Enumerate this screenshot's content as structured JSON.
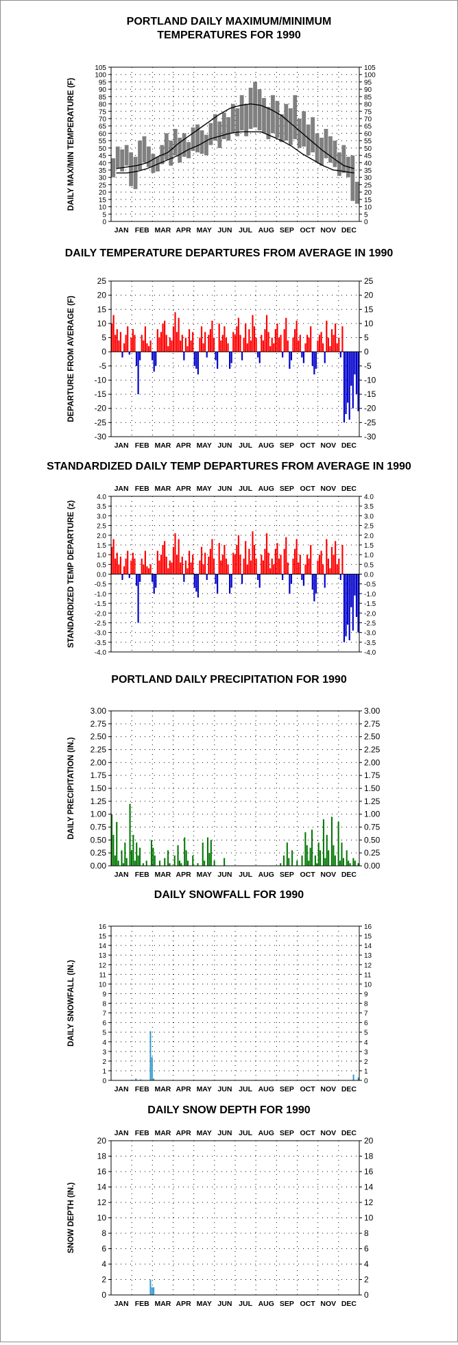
{
  "months": [
    "JAN",
    "FEB",
    "MAR",
    "APR",
    "MAY",
    "JUN",
    "JUL",
    "AUG",
    "SEP",
    "OCT",
    "NOV",
    "DEC"
  ],
  "colors": {
    "temp_band": "#808080",
    "normal_line": "#000000",
    "above": "#ff0000",
    "below": "#0000cc",
    "precip": "#007700",
    "snow": "#3399cc"
  },
  "chart_data": [
    {
      "id": "temps",
      "type": "area",
      "title": [
        "PORTLAND DAILY MAXIMUM/MINIMUM",
        "TEMPERATURES FOR 1990"
      ],
      "ylabel": "DAILY MAX/MIN TEMPERATURE (F)",
      "ylim": [
        0,
        105
      ],
      "ytick_step": 5,
      "ytick_decimals": 0,
      "grid": true,
      "x_axis": "month",
      "month_labels": "bottom",
      "normal_high": [
        36,
        37,
        38,
        40,
        44,
        47,
        53,
        58,
        63,
        68,
        73,
        77,
        79,
        80,
        79,
        76,
        72,
        66,
        60,
        54,
        48,
        43,
        38,
        36
      ],
      "normal_low": [
        33,
        33,
        34,
        36,
        39,
        42,
        45,
        49,
        52,
        56,
        58,
        60,
        61,
        61,
        61,
        58,
        55,
        51,
        46,
        42,
        38,
        35,
        34,
        33
      ],
      "series_high": [
        43,
        51,
        49,
        52,
        47,
        44,
        55,
        58,
        51,
        46,
        44,
        52,
        60,
        55,
        63,
        57,
        60,
        54,
        64,
        66,
        62,
        59,
        67,
        73,
        68,
        74,
        71,
        80,
        77,
        86,
        80,
        91,
        95,
        90,
        84,
        78,
        86,
        82,
        73,
        80,
        77,
        86,
        70,
        75,
        66,
        71,
        60,
        57,
        63,
        58,
        55,
        47,
        52,
        44,
        45,
        27
      ],
      "series_low": [
        30,
        36,
        34,
        38,
        24,
        22,
        35,
        40,
        37,
        33,
        34,
        39,
        42,
        38,
        45,
        40,
        44,
        43,
        48,
        47,
        46,
        45,
        52,
        55,
        50,
        56,
        55,
        60,
        58,
        62,
        58,
        63,
        64,
        62,
        60,
        56,
        60,
        57,
        54,
        55,
        52,
        56,
        50,
        51,
        45,
        47,
        40,
        38,
        43,
        40,
        37,
        31,
        33,
        30,
        14,
        12
      ]
    },
    {
      "id": "departures",
      "type": "bar",
      "title": [
        "DAILY TEMPERATURE DEPARTURES FROM AVERAGE IN 1990"
      ],
      "ylabel": "DEPARTURE FROM AVERAGE (F)",
      "ylim": [
        -30,
        25
      ],
      "ytick_step": 5,
      "ytick_decimals": 0,
      "grid": true,
      "x_axis": "month",
      "month_labels": "bottom",
      "values": [
        10,
        13,
        6,
        8,
        4,
        7,
        -2,
        3,
        6,
        9,
        -1,
        5,
        8,
        6,
        -5,
        -15,
        -3,
        6,
        4,
        9,
        3,
        2,
        4,
        -3,
        -7,
        -5,
        8,
        5,
        7,
        10,
        11,
        6,
        2,
        5,
        4,
        9,
        14,
        7,
        12,
        4,
        6,
        -3,
        5,
        2,
        8,
        4,
        7,
        -5,
        -6,
        -8,
        5,
        9,
        3,
        7,
        -2,
        6,
        8,
        11,
        5,
        -3,
        -6,
        10,
        4,
        6,
        9,
        5,
        3,
        -6,
        -4,
        7,
        6,
        9,
        12,
        6,
        -3,
        5,
        10,
        3,
        8,
        4,
        13,
        9,
        5,
        -2,
        -4,
        6,
        4,
        8,
        13,
        7,
        2,
        5,
        3,
        8,
        10,
        5,
        6,
        -2,
        8,
        12,
        4,
        -6,
        -3,
        5,
        8,
        11,
        4,
        6,
        -2,
        -4,
        3,
        6,
        5,
        9,
        -5,
        -8,
        -6,
        4,
        6,
        7,
        3,
        -4,
        11,
        5,
        2,
        8,
        6,
        10,
        3,
        5,
        -2,
        9,
        -25,
        -22,
        -18,
        -24,
        -12,
        -20,
        -8,
        -15,
        -21
      ]
    },
    {
      "id": "standardized",
      "type": "bar",
      "title": [
        "STANDARDIZED DAILY TEMP DEPARTURES FROM AVERAGE IN 1990"
      ],
      "ylabel": "STANDARDIZED TEMP DEPARTURE (z)",
      "ylim": [
        -4,
        4
      ],
      "ytick_step": 0.5,
      "ytick_decimals": 1,
      "grid": true,
      "x_axis": "month",
      "month_labels": "top",
      "values": [
        1.4,
        1.8,
        0.8,
        1.1,
        0.5,
        0.9,
        -0.3,
        0.4,
        0.8,
        1.2,
        -0.2,
        0.7,
        1.1,
        0.8,
        -0.6,
        -2.5,
        -0.4,
        0.8,
        0.5,
        1.2,
        0.4,
        0.3,
        0.5,
        -0.4,
        -1.0,
        -0.7,
        1.2,
        0.7,
        1.0,
        1.5,
        1.7,
        0.9,
        0.3,
        0.7,
        0.6,
        1.4,
        2.1,
        1.0,
        1.8,
        0.6,
        0.9,
        -0.4,
        0.7,
        0.3,
        1.2,
        0.6,
        1.0,
        -0.7,
        -0.9,
        -1.2,
        0.7,
        1.4,
        0.5,
        1.1,
        -0.3,
        0.9,
        1.3,
        1.8,
        0.8,
        -0.5,
        -1.0,
        1.6,
        0.7,
        1.0,
        1.5,
        0.8,
        0.5,
        -1.0,
        -0.7,
        1.1,
        1.0,
        1.5,
        2.0,
        1.0,
        -0.5,
        0.8,
        1.7,
        0.5,
        1.3,
        0.7,
        2.2,
        1.5,
        0.8,
        -0.3,
        -0.7,
        1.0,
        0.7,
        1.3,
        2.1,
        1.1,
        0.3,
        0.8,
        0.5,
        1.3,
        1.6,
        0.8,
        1.0,
        -0.3,
        1.3,
        1.9,
        0.6,
        -1.0,
        -0.5,
        0.8,
        1.3,
        1.8,
        0.6,
        1.0,
        -0.3,
        -0.6,
        0.5,
        1.0,
        0.8,
        1.5,
        -0.8,
        -1.4,
        -1.0,
        0.7,
        1.0,
        1.2,
        0.5,
        -0.7,
        1.8,
        0.8,
        0.3,
        1.4,
        1.0,
        1.7,
        0.5,
        0.8,
        -0.3,
        1.5,
        -3.5,
        -3.2,
        -2.6,
        -3.4,
        -1.7,
        -2.9,
        -1.1,
        -2.2,
        -3.0
      ]
    },
    {
      "id": "precip",
      "type": "bar",
      "title": [
        "PORTLAND DAILY PRECIPITATION FOR 1990"
      ],
      "ylabel": "DAILY PRECIPITATION (IN.)",
      "ylim": [
        0,
        3
      ],
      "ytick_step": 0.25,
      "ytick_decimals": 2,
      "grid": true,
      "x_axis": "month",
      "month_labels": "bottom",
      "values": [
        1.0,
        0.6,
        0.2,
        0.85,
        0.1,
        0,
        0.3,
        0.05,
        0.45,
        0.15,
        0,
        1.2,
        0.3,
        0.6,
        0.1,
        0.45,
        0.2,
        0.35,
        0,
        0.05,
        0,
        0.1,
        0,
        0,
        0.5,
        0.35,
        0.2,
        0,
        0,
        0.1,
        0,
        0,
        0.15,
        0,
        0.3,
        0.05,
        0,
        0,
        0.2,
        0,
        0.4,
        0.1,
        0.05,
        0,
        0.55,
        0.3,
        0.1,
        0,
        0,
        0.2,
        0,
        0,
        0.05,
        0,
        0,
        0.45,
        0.1,
        0,
        0.55,
        0.25,
        0.5,
        0,
        0.1,
        0,
        0,
        0,
        0,
        0,
        0.15,
        0,
        0,
        0,
        0,
        0,
        0,
        0,
        0,
        0,
        0,
        0,
        0,
        0,
        0,
        0,
        0,
        0,
        0,
        0,
        0,
        0,
        0,
        0,
        0,
        0,
        0,
        0,
        0,
        0,
        0,
        0,
        0,
        0,
        0.05,
        0,
        0.2,
        0,
        0.45,
        0.15,
        0,
        0.3,
        0,
        0,
        0.1,
        0,
        0,
        0.2,
        0,
        0.65,
        0.4,
        0.1,
        0.35,
        0.7,
        0,
        0.2,
        0.05,
        0.45,
        0.3,
        0,
        0.9,
        0.15,
        0.6,
        0.3,
        0,
        0.95,
        0.4,
        0.2,
        0,
        0.85,
        0.1,
        0.45,
        0.15,
        0,
        0.3,
        0.1,
        0.05,
        0,
        0.15,
        0.1,
        0,
        0.05
      ]
    },
    {
      "id": "snowfall",
      "type": "bar",
      "title": [
        "DAILY SNOWFALL FOR 1990"
      ],
      "ylabel": "DAILY SNOWFALL (IN.)",
      "ylim": [
        0,
        16
      ],
      "ytick_step": 1,
      "ytick_decimals": 0,
      "grid": true,
      "x_axis": "month",
      "month_labels": "bottom",
      "values": [
        0,
        0,
        0,
        0,
        0,
        0,
        0,
        0,
        0,
        0,
        0,
        0,
        0,
        0,
        0,
        0.2,
        0,
        0,
        0.1,
        0,
        0,
        0,
        0,
        0,
        5.1,
        2.4,
        0.2,
        0,
        0,
        0,
        0,
        0,
        0,
        0,
        0,
        0,
        0,
        0,
        0,
        0,
        0,
        0,
        0,
        0,
        0,
        0,
        0,
        0,
        0,
        0,
        0,
        0,
        0,
        0,
        0,
        0,
        0,
        0,
        0,
        0,
        0,
        0,
        0,
        0,
        0,
        0,
        0,
        0,
        0,
        0,
        0,
        0,
        0,
        0,
        0,
        0,
        0,
        0,
        0,
        0,
        0,
        0,
        0,
        0,
        0,
        0,
        0,
        0,
        0,
        0,
        0,
        0,
        0,
        0,
        0,
        0,
        0,
        0,
        0,
        0,
        0,
        0,
        0,
        0,
        0,
        0,
        0,
        0,
        0,
        0,
        0,
        0,
        0,
        0,
        0,
        0,
        0,
        0,
        0,
        0,
        0,
        0,
        0,
        0,
        0,
        0,
        0,
        0,
        0,
        0,
        0,
        0,
        0,
        0,
        0,
        0,
        0,
        0,
        0,
        0,
        0,
        0,
        0,
        0,
        0,
        0,
        0,
        0,
        0,
        0,
        0.6,
        0,
        0,
        0.3
      ]
    },
    {
      "id": "snowdepth",
      "type": "bar",
      "title": [
        "DAILY SNOW DEPTH FOR 1990"
      ],
      "ylabel": "SNOW DEPTH (IN.)",
      "ylim": [
        0,
        20
      ],
      "ytick_step": 2,
      "ytick_decimals": 0,
      "grid": true,
      "x_axis": "month",
      "month_labels": "both",
      "values": [
        0,
        0,
        0,
        0,
        0,
        0,
        0,
        0,
        0,
        0,
        0,
        0,
        0,
        0,
        0,
        0,
        0,
        0,
        0,
        0,
        0,
        0,
        0,
        0,
        2,
        1,
        1,
        0,
        0,
        0,
        0,
        0,
        0,
        0,
        0,
        0,
        0,
        0,
        0,
        0,
        0,
        0,
        0,
        0,
        0,
        0,
        0,
        0,
        0,
        0,
        0,
        0,
        0,
        0,
        0,
        0,
        0,
        0,
        0,
        0,
        0,
        0,
        0,
        0,
        0,
        0,
        0,
        0,
        0,
        0,
        0,
        0,
        0,
        0,
        0,
        0,
        0,
        0,
        0,
        0,
        0,
        0,
        0,
        0,
        0,
        0,
        0,
        0,
        0,
        0,
        0,
        0,
        0,
        0,
        0,
        0,
        0,
        0,
        0,
        0,
        0,
        0,
        0,
        0,
        0,
        0,
        0,
        0,
        0,
        0,
        0,
        0,
        0,
        0,
        0,
        0,
        0,
        0,
        0,
        0,
        0,
        0,
        0,
        0,
        0,
        0,
        0,
        0,
        0,
        0,
        0,
        0,
        0,
        0,
        0,
        0,
        0,
        0,
        0,
        0,
        0,
        0,
        0,
        0,
        0,
        0,
        0,
        0,
        0,
        0,
        0,
        0,
        0,
        0
      ]
    }
  ]
}
